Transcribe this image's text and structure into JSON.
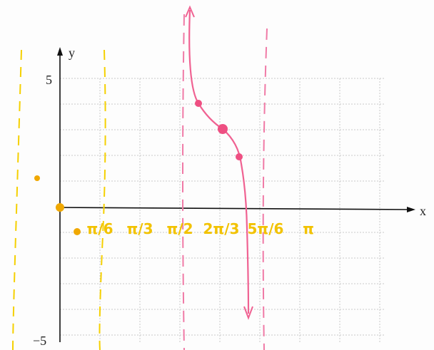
{
  "axes": {
    "x_label": "x",
    "y_label": "y",
    "y_top": "5",
    "y_bottom": "−5"
  },
  "handwritten_labels": [
    "π/6",
    "π/3",
    "π/2",
    "2π/3",
    "5π/6",
    "π"
  ]
}
